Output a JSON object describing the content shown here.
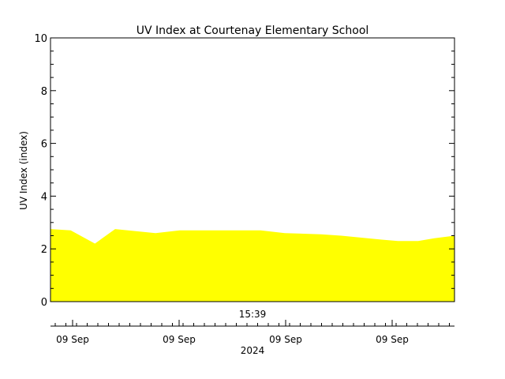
{
  "chart_data": {
    "type": "area",
    "title": "UV Index at Courtenay Elementary School",
    "ylabel": "UV Index (index)",
    "xlabel": "",
    "ylim": [
      0,
      10
    ],
    "yticks": [
      0,
      2,
      4,
      6,
      8,
      10
    ],
    "fill_color": "#ffff00",
    "series": [
      {
        "x": [
          0,
          0.05,
          0.11,
          0.16,
          0.26,
          0.32,
          0.52,
          0.58,
          0.67,
          0.72,
          0.82,
          0.86,
          0.91,
          0.95,
          1.0
        ],
        "values": [
          2.75,
          2.7,
          2.2,
          2.75,
          2.6,
          2.7,
          2.7,
          2.6,
          2.55,
          2.5,
          2.35,
          2.3,
          2.3,
          2.4,
          2.5
        ]
      }
    ],
    "time_label": "15:39",
    "date_ticks": [
      "09 Sep",
      "09 Sep",
      "09 Sep",
      "09 Sep"
    ],
    "year_label": "2024"
  }
}
